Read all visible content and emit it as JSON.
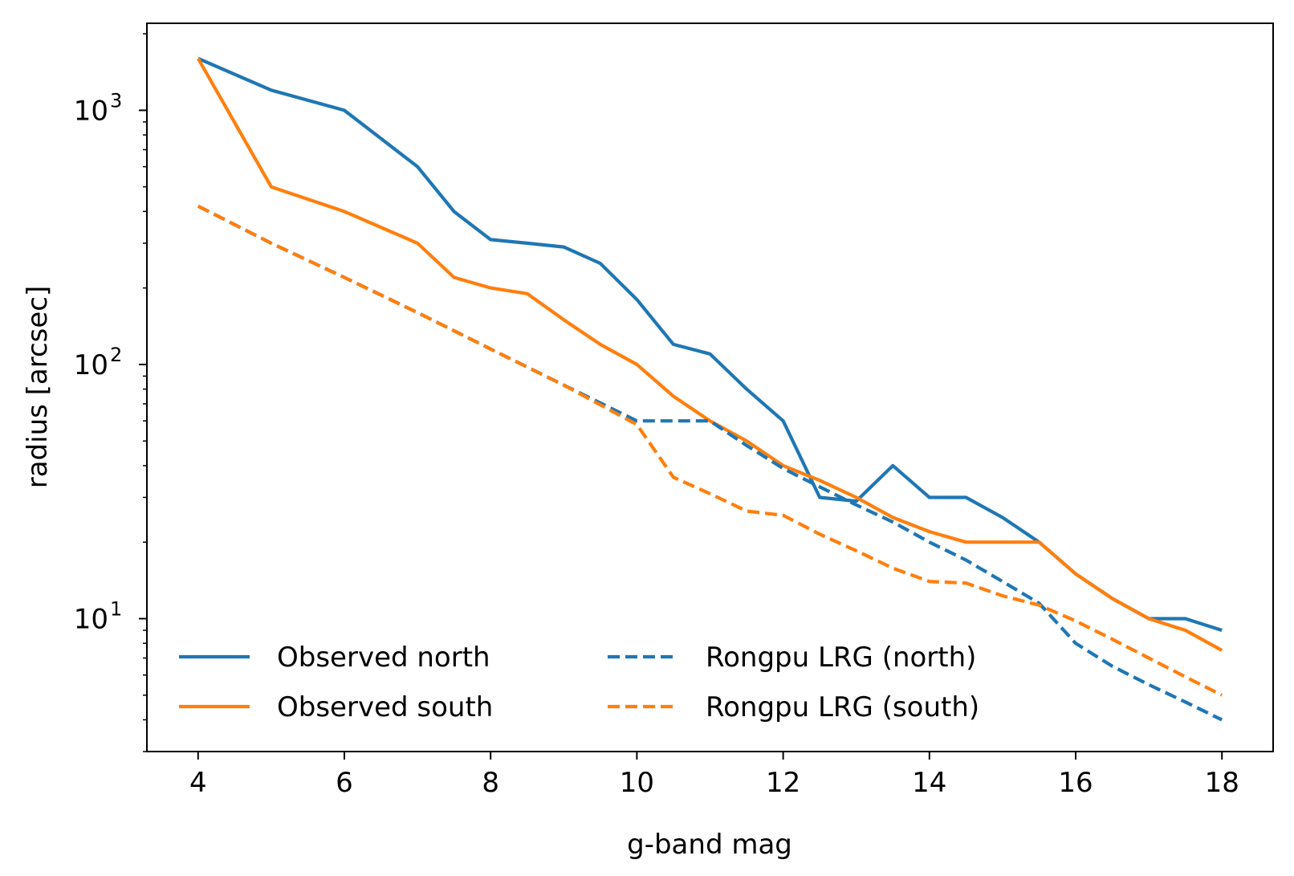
{
  "chart_data": {
    "type": "line",
    "xlabel": "g-band mag",
    "ylabel": "radius [arcsec]",
    "xlim": [
      3.3,
      18.7
    ],
    "ylim": [
      3,
      2200
    ],
    "yscale": "log",
    "x_ticks": [
      4,
      6,
      8,
      10,
      12,
      14,
      16,
      18
    ],
    "y_ticks": [
      {
        "value": 10,
        "base": "10",
        "exp": "1"
      },
      {
        "value": 100,
        "base": "10",
        "exp": "2"
      },
      {
        "value": 1000,
        "base": "10",
        "exp": "3"
      }
    ],
    "grid": false,
    "legend_position": "lower-left",
    "series": [
      {
        "name": "Observed north",
        "color": "#1f77b4",
        "style": "solid",
        "x": [
          4,
          5,
          6,
          7,
          7.5,
          8,
          8.5,
          9,
          9.5,
          10,
          10.5,
          11,
          11.5,
          12,
          12.5,
          13,
          13.5,
          14,
          14.5,
          15,
          15.5,
          16,
          16.5,
          17,
          17.5,
          18
        ],
        "y": [
          1600,
          1200,
          1000,
          600,
          400,
          310,
          300,
          290,
          250,
          180,
          120,
          110,
          80,
          60,
          30,
          29,
          40,
          30,
          30,
          25,
          20,
          15,
          12,
          10,
          10,
          9
        ]
      },
      {
        "name": "Observed south",
        "color": "#ff7f0e",
        "style": "solid",
        "x": [
          4,
          5,
          6,
          7,
          7.5,
          8,
          8.5,
          9,
          9.5,
          10,
          10.5,
          11,
          11.5,
          12,
          12.5,
          13,
          13.5,
          14,
          14.5,
          15,
          15.5,
          16,
          16.5,
          17,
          17.5,
          18
        ],
        "y": [
          1600,
          500,
          400,
          300,
          220,
          200,
          190,
          150,
          120,
          100,
          75,
          60,
          50,
          40,
          35,
          30,
          25,
          22,
          20,
          20,
          20,
          15,
          12,
          10,
          9,
          7.5
        ]
      },
      {
        "name": "Rongpu LRG (north)",
        "color": "#1f77b4",
        "style": "dashed",
        "x": [
          4,
          5,
          6,
          7,
          8,
          9,
          10,
          10.5,
          11,
          11.5,
          12,
          12.5,
          13,
          13.5,
          14,
          14.5,
          15,
          15.5,
          16,
          16.5,
          17,
          17.5,
          18
        ],
        "y": [
          420,
          300,
          220,
          160,
          115,
          83,
          60,
          60,
          60,
          48,
          39,
          33,
          28,
          24,
          20,
          17,
          14,
          11.5,
          8,
          6.5,
          5.5,
          4.7,
          4
        ]
      },
      {
        "name": "Rongpu LRG (south)",
        "color": "#ff7f0e",
        "style": "dashed",
        "x": [
          4,
          5,
          6,
          7,
          8,
          9,
          10,
          10.5,
          11,
          11.5,
          12,
          12.5,
          13,
          13.5,
          14,
          14.5,
          15,
          15.5,
          16,
          16.5,
          17,
          17.5,
          18
        ],
        "y": [
          420,
          300,
          220,
          160,
          115,
          83,
          58,
          36,
          31,
          26.5,
          25.5,
          21.5,
          18.5,
          15.8,
          14,
          13.8,
          12.3,
          11.3,
          9.8,
          8.3,
          7,
          5.9,
          5
        ]
      }
    ]
  }
}
